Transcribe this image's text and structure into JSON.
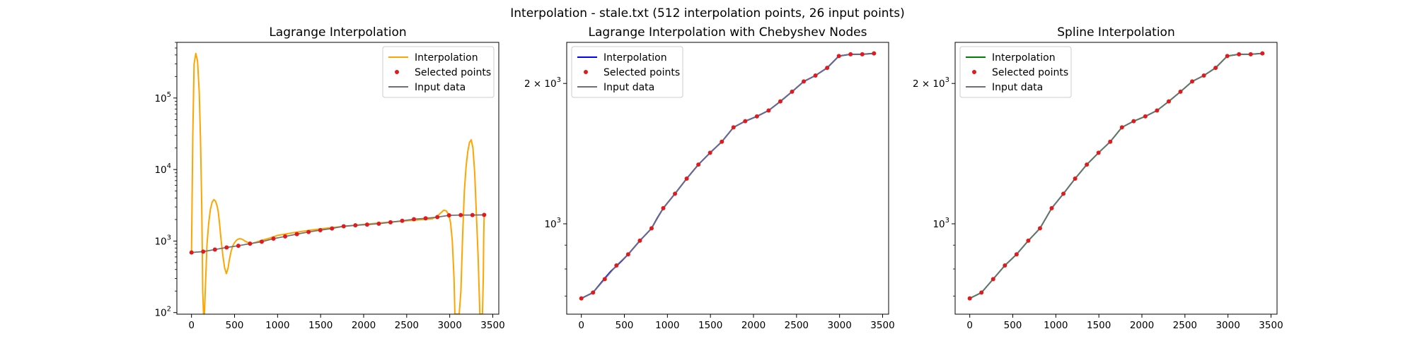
{
  "figure": {
    "suptitle": "Interpolation - stale.txt (512 interpolation points, 26 input points)"
  },
  "colors": {
    "selected_points": "#e31a1c",
    "input_data": "#6f6f7a",
    "lagrange": "#ffa500",
    "chebyshev": "#0000ff",
    "spline": "#008000"
  },
  "chart_data": [
    {
      "type": "line",
      "title": "Lagrange Interpolation",
      "xlabel": "",
      "ylabel": "",
      "xscale": "linear",
      "yscale": "log",
      "xlim": [
        -170,
        3570
      ],
      "ylim": [
        95,
        600000
      ],
      "xticks": [
        0,
        500,
        1000,
        1500,
        2000,
        2500,
        3000,
        3500
      ],
      "yticks": [
        {
          "value": 100,
          "label": "10",
          "exp": "2"
        },
        {
          "value": 1000,
          "label": "10",
          "exp": "3"
        },
        {
          "value": 10000,
          "label": "10",
          "exp": "4"
        },
        {
          "value": 100000,
          "label": "10",
          "exp": "5"
        }
      ],
      "legend": {
        "placement": "top-right",
        "entries": [
          "Interpolation",
          "Selected points",
          "Input data"
        ]
      },
      "grid": false,
      "series": [
        {
          "name": "Interpolation",
          "color_key": "lagrange",
          "x": [
            0,
            15,
            30,
            50,
            70,
            90,
            105,
            118,
            125,
            130,
            140,
            150,
            165,
            180,
            200,
            220,
            240,
            260,
            280,
            300,
            310,
            325,
            345,
            365,
            385,
            405,
            425,
            440,
            460,
            480,
            500,
            520,
            540,
            560,
            580,
            600,
            620,
            650,
            700,
            800,
            900,
            1000,
            1200,
            1400,
            1600,
            1800,
            2000,
            2200,
            2400,
            2600,
            2800,
            2850,
            2900,
            2930,
            2960,
            2990,
            3010,
            3030,
            3050,
            3060,
            3070,
            3080,
            3090,
            3110,
            3130,
            3150,
            3170,
            3190,
            3210,
            3230,
            3250,
            3270,
            3290,
            3310,
            3330,
            3350,
            3380,
            3390,
            3395,
            3400
          ],
          "y": [
            690,
            30000,
            300000,
            420000,
            330000,
            120000,
            25000,
            3500,
            800,
            200,
            95,
            95,
            300,
            900,
            1800,
            2800,
            3500,
            3800,
            3600,
            3000,
            2600,
            1800,
            1000,
            620,
            420,
            350,
            420,
            550,
            720,
            860,
            950,
            1020,
            1060,
            1080,
            1070,
            1040,
            1000,
            960,
            920,
            1010,
            1090,
            1200,
            1320,
            1430,
            1530,
            1620,
            1710,
            1800,
            1880,
            1960,
            2050,
            2200,
            2500,
            2700,
            2650,
            2300,
            1800,
            1000,
            300,
            95,
            95,
            95,
            95,
            95,
            200,
            1200,
            5000,
            11000,
            18000,
            24000,
            26000,
            20000,
            9000,
            2300,
            600,
            95,
            95,
            300,
            1200,
            2300
          ]
        },
        {
          "name": "Input data",
          "color_key": "input_data",
          "x": [
            0,
            136,
            272,
            408,
            544,
            680,
            816,
            952,
            1088,
            1224,
            1360,
            1496,
            1632,
            1768,
            1904,
            2040,
            2176,
            2312,
            2448,
            2584,
            2720,
            2856,
            2992,
            3128,
            3264,
            3400
          ],
          "y": [
            692,
            712,
            761,
            814,
            860,
            920,
            978,
            1080,
            1160,
            1250,
            1340,
            1420,
            1500,
            1610,
            1660,
            1700,
            1750,
            1830,
            1920,
            2020,
            2080,
            2160,
            2290,
            2310,
            2310,
            2320
          ]
        },
        {
          "name": "Selected points",
          "color_key": "selected_points",
          "marker": "dot",
          "x": [
            0,
            136,
            272,
            408,
            544,
            680,
            816,
            952,
            1088,
            1224,
            1360,
            1496,
            1632,
            1768,
            1904,
            2040,
            2176,
            2312,
            2448,
            2584,
            2720,
            2856,
            2992,
            3128,
            3264,
            3400
          ],
          "y": [
            692,
            712,
            761,
            814,
            860,
            920,
            978,
            1080,
            1160,
            1250,
            1340,
            1420,
            1500,
            1610,
            1660,
            1700,
            1750,
            1830,
            1920,
            2020,
            2080,
            2160,
            2290,
            2310,
            2310,
            2320
          ]
        }
      ]
    },
    {
      "type": "line",
      "title": "Lagrange Interpolation with Chebyshev Nodes",
      "xlabel": "",
      "ylabel": "",
      "xscale": "linear",
      "yscale": "log",
      "xlim": [
        -170,
        3570
      ],
      "ylim": [
        640,
        2450
      ],
      "xticks": [
        0,
        500,
        1000,
        1500,
        2000,
        2500,
        3000,
        3500
      ],
      "yticks": [
        {
          "value": 1000,
          "label": "10",
          "exp": "3"
        },
        {
          "value": 2000,
          "label": "2 × 10",
          "exp": "3"
        }
      ],
      "legend": {
        "placement": "top-left",
        "entries": [
          "Interpolation",
          "Selected points",
          "Input data"
        ]
      },
      "grid": false,
      "series": [
        {
          "name": "Interpolation",
          "color_key": "chebyshev",
          "x": [
            0,
            136,
            272,
            340,
            408,
            476,
            544,
            680,
            816,
            884,
            952,
            1088,
            1224,
            1360,
            1496,
            1632,
            1768,
            1904,
            2040,
            2176,
            2312,
            2448,
            2584,
            2720,
            2856,
            2992,
            3128,
            3264,
            3400
          ],
          "y": [
            692,
            712,
            764,
            790,
            812,
            835,
            860,
            920,
            978,
            1030,
            1080,
            1160,
            1250,
            1340,
            1420,
            1500,
            1610,
            1660,
            1700,
            1750,
            1830,
            1920,
            2020,
            2080,
            2160,
            2290,
            2310,
            2310,
            2320
          ]
        },
        {
          "name": "Input data",
          "color_key": "input_data",
          "x": [
            0,
            136,
            272,
            408,
            544,
            680,
            816,
            952,
            1088,
            1224,
            1360,
            1496,
            1632,
            1768,
            1904,
            2040,
            2176,
            2312,
            2448,
            2584,
            2720,
            2856,
            2992,
            3128,
            3264,
            3400
          ],
          "y": [
            692,
            712,
            761,
            814,
            860,
            920,
            978,
            1080,
            1160,
            1250,
            1340,
            1420,
            1500,
            1610,
            1660,
            1700,
            1750,
            1830,
            1920,
            2020,
            2080,
            2160,
            2290,
            2310,
            2310,
            2320
          ]
        },
        {
          "name": "Selected points",
          "color_key": "selected_points",
          "marker": "dot",
          "x": [
            0,
            136,
            272,
            408,
            544,
            680,
            816,
            952,
            1088,
            1224,
            1360,
            1496,
            1632,
            1768,
            1904,
            2040,
            2176,
            2312,
            2448,
            2584,
            2720,
            2856,
            2992,
            3128,
            3264,
            3400
          ],
          "y": [
            692,
            712,
            761,
            814,
            860,
            920,
            978,
            1080,
            1160,
            1250,
            1340,
            1420,
            1500,
            1610,
            1660,
            1700,
            1750,
            1830,
            1920,
            2020,
            2080,
            2160,
            2290,
            2310,
            2310,
            2320
          ]
        }
      ]
    },
    {
      "type": "line",
      "title": "Spline Interpolation",
      "xlabel": "",
      "ylabel": "",
      "xscale": "linear",
      "yscale": "log",
      "xlim": [
        -170,
        3570
      ],
      "ylim": [
        640,
        2450
      ],
      "xticks": [
        0,
        500,
        1000,
        1500,
        2000,
        2500,
        3000,
        3500
      ],
      "yticks": [
        {
          "value": 1000,
          "label": "10",
          "exp": "3"
        },
        {
          "value": 2000,
          "label": "2 × 10",
          "exp": "3"
        }
      ],
      "legend": {
        "placement": "top-left",
        "entries": [
          "Interpolation",
          "Selected points",
          "Input data"
        ]
      },
      "grid": false,
      "series": [
        {
          "name": "Interpolation",
          "color_key": "spline",
          "x": [
            0,
            136,
            272,
            408,
            544,
            680,
            816,
            952,
            1088,
            1224,
            1360,
            1496,
            1632,
            1768,
            1904,
            2040,
            2176,
            2312,
            2448,
            2584,
            2720,
            2856,
            2992,
            3128,
            3264,
            3400
          ],
          "y": [
            692,
            712,
            761,
            814,
            860,
            920,
            978,
            1080,
            1160,
            1250,
            1340,
            1420,
            1500,
            1610,
            1660,
            1700,
            1750,
            1830,
            1920,
            2020,
            2080,
            2160,
            2290,
            2310,
            2310,
            2320
          ]
        },
        {
          "name": "Input data",
          "color_key": "input_data",
          "x": [
            0,
            136,
            272,
            408,
            544,
            680,
            816,
            952,
            1088,
            1224,
            1360,
            1496,
            1632,
            1768,
            1904,
            2040,
            2176,
            2312,
            2448,
            2584,
            2720,
            2856,
            2992,
            3128,
            3264,
            3400
          ],
          "y": [
            692,
            712,
            761,
            814,
            860,
            920,
            978,
            1080,
            1160,
            1250,
            1340,
            1420,
            1500,
            1610,
            1660,
            1700,
            1750,
            1830,
            1920,
            2020,
            2080,
            2160,
            2290,
            2310,
            2310,
            2320
          ]
        },
        {
          "name": "Selected points",
          "color_key": "selected_points",
          "marker": "dot",
          "x": [
            0,
            136,
            272,
            408,
            544,
            680,
            816,
            952,
            1088,
            1224,
            1360,
            1496,
            1632,
            1768,
            1904,
            2040,
            2176,
            2312,
            2448,
            2584,
            2720,
            2856,
            2992,
            3128,
            3264,
            3400
          ],
          "y": [
            692,
            712,
            761,
            814,
            860,
            920,
            978,
            1080,
            1160,
            1250,
            1340,
            1420,
            1500,
            1610,
            1660,
            1700,
            1750,
            1830,
            1920,
            2020,
            2080,
            2160,
            2290,
            2310,
            2310,
            2320
          ]
        }
      ]
    }
  ]
}
